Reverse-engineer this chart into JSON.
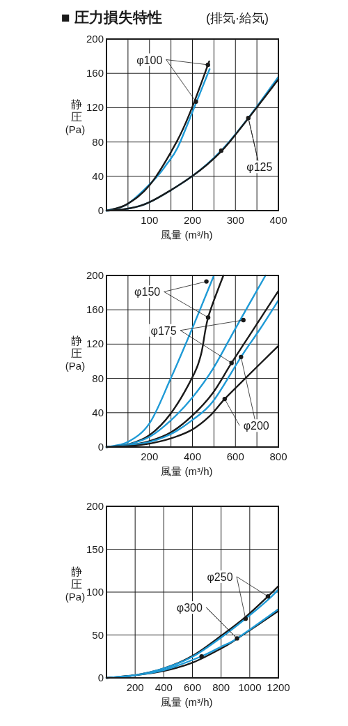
{
  "chart_data": [
    {
      "type": "line",
      "title": "■ 圧力損失特性",
      "subtitle": "(排気·給気)",
      "xlabel": "風量 (m³/h)",
      "ylabel": "静圧 (Pa)",
      "grid": true,
      "xlim": [
        0,
        400
      ],
      "xticks": [
        {
          "value": 50,
          "label": null
        },
        100,
        {
          "value": 150,
          "label": null
        },
        200,
        {
          "value": 250,
          "label": null
        },
        300,
        {
          "value": 350,
          "label": null
        },
        400
      ],
      "ylim": [
        0,
        200
      ],
      "yticks": [
        0,
        40,
        80,
        120,
        160,
        200
      ],
      "series": [
        {
          "color": "#1e9ad6",
          "x": [
            0,
            50,
            111,
            140,
            166,
            204,
            240
          ],
          "values": [
            0,
            8,
            36,
            54,
            74,
            120,
            165
          ]
        },
        {
          "color": "#1a1a1a",
          "x": [
            0,
            46,
            101,
            163,
            199,
            239
          ],
          "values": [
            0,
            7,
            30,
            80,
            120,
            174
          ]
        },
        {
          "color": "#1e9ad6",
          "x": [
            0,
            46,
            101,
            199,
            267,
            330,
            400
          ],
          "values": [
            0,
            2,
            10,
            40,
            70,
            108,
            156
          ]
        },
        {
          "color": "#1a1a1a",
          "x": [
            0,
            46,
            101,
            199,
            267,
            329,
            400
          ],
          "values": [
            0,
            2,
            10,
            40,
            69,
            107,
            153
          ]
        },
        {
          "type": "scatter",
          "marker": "circle",
          "color": "#1a1a1a",
          "x": [
            236,
            208,
            267,
            330
          ],
          "values": [
            170,
            127,
            70,
            108
          ]
        }
      ],
      "annotations": [
        {
          "text": "φ100",
          "x": 236,
          "y": 170
        },
        {
          "text": "φ125",
          "x": 330,
          "y": 108
        }
      ]
    },
    {
      "type": "line",
      "xlabel": "風量 (m³/h)",
      "ylabel": "静圧 (Pa)",
      "grid": true,
      "xlim": [
        0,
        800
      ],
      "xticks": [
        {
          "value": 100,
          "label": null
        },
        200,
        {
          "value": 300,
          "label": null
        },
        400,
        {
          "value": 500,
          "label": null
        },
        600,
        {
          "value": 700,
          "label": null
        },
        800
      ],
      "ylim": [
        0,
        200
      ],
      "yticks": [
        0,
        40,
        80,
        120,
        160,
        200
      ],
      "series": [
        {
          "color": "#1e9ad6",
          "x": [
            0,
            100,
            201,
            299,
            397,
            500
          ],
          "values": [
            0,
            6,
            28,
            80,
            137,
            200
          ]
        },
        {
          "color": "#1a1a1a",
          "x": [
            0,
            100,
            201,
            299,
            397,
            440,
            473,
            544
          ],
          "values": [
            0,
            3,
            14,
            39,
            80,
            108,
            151,
            200
          ]
        },
        {
          "color": "#1e9ad6",
          "x": [
            0,
            100,
            201,
            299,
            397,
            495,
            604,
            740
          ],
          "values": [
            0,
            3,
            12,
            31,
            57,
            91,
            140,
            200
          ]
        },
        {
          "color": "#1a1a1a",
          "x": [
            0,
            100,
            201,
            299,
            397,
            495,
            582,
            691,
            800
          ],
          "values": [
            0,
            2,
            7,
            17,
            36,
            63,
            98,
            140,
            182
          ]
        },
        {
          "color": "#1e9ad6",
          "x": [
            0,
            100,
            201,
            299,
            397,
            495,
            626,
            713,
            800
          ],
          "values": [
            0,
            2,
            6,
            15,
            31,
            53,
            105,
            137,
            171
          ]
        },
        {
          "color": "#1a1a1a",
          "x": [
            0,
            100,
            201,
            299,
            397,
            480,
            550,
            658,
            800
          ],
          "values": [
            0,
            1,
            4,
            10,
            20,
            36,
            56,
            83,
            118
          ]
        },
        {
          "type": "scatter",
          "marker": "circle",
          "color": "#1a1a1a",
          "x": [
            465,
            473,
            637,
            582,
            626,
            550
          ],
          "values": [
            193,
            151,
            148,
            98,
            105,
            56
          ]
        }
      ],
      "annotations": [
        {
          "text": "φ150",
          "x": 465,
          "y": 193
        },
        {
          "text": "φ175",
          "x": 637,
          "y": 148
        },
        {
          "text": "φ200",
          "x": 626,
          "y": 105
        }
      ]
    },
    {
      "type": "line",
      "xlabel": "風量 (m³/h)",
      "ylabel": "静圧 (Pa)",
      "grid": true,
      "xlim": [
        0,
        1200
      ],
      "xticks": [
        200,
        400,
        600,
        800,
        1000,
        1200
      ],
      "ylim": [
        0,
        200
      ],
      "yticks": [
        0,
        50,
        100,
        150,
        200
      ],
      "series": [
        {
          "color": "#1a1a1a",
          "x": [
            0,
            196,
            400,
            604,
            808,
            971,
            1127,
            1200
          ],
          "values": [
            0,
            3,
            11,
            26,
            50,
            71,
            95,
            107
          ]
        },
        {
          "color": "#1e9ad6",
          "x": [
            0,
            196,
            400,
            604,
            808,
            971,
            1127,
            1200
          ],
          "values": [
            0,
            3,
            11,
            25,
            48,
            69,
            91,
            103
          ]
        },
        {
          "color": "#1a1a1a",
          "x": [
            0,
            196,
            400,
            604,
            808,
            914,
            1200
          ],
          "values": [
            0,
            3,
            8,
            18,
            35,
            46,
            78
          ]
        },
        {
          "color": "#1e9ad6",
          "x": [
            0,
            196,
            400,
            661,
            808,
            911,
            1200
          ],
          "values": [
            0,
            3,
            9,
            25,
            37,
            46,
            80
          ]
        },
        {
          "type": "scatter",
          "marker": "circle",
          "color": "#1a1a1a",
          "x": [
            1127,
            971,
            664,
            911
          ],
          "values": [
            95,
            69,
            25,
            46
          ]
        }
      ],
      "annotations": [
        {
          "text": "φ250",
          "x": 1127,
          "y": 95
        },
        {
          "text": "φ300",
          "x": 911,
          "y": 46
        }
      ]
    }
  ]
}
